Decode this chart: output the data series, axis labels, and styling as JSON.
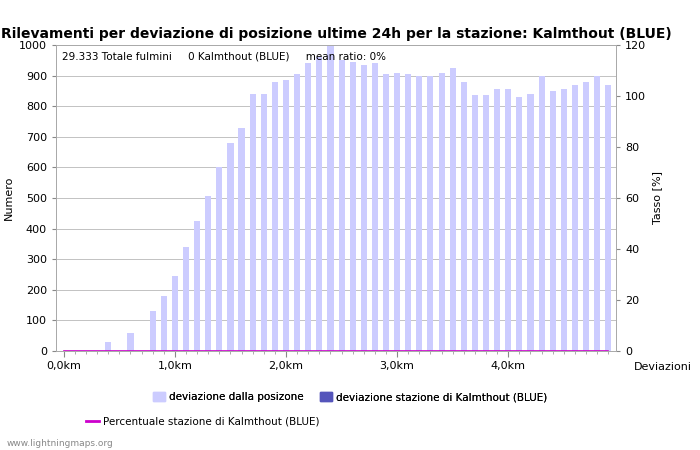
{
  "title": "Rilevamenti per deviazione di posizione ultime 24h per la stazione: Kalmthout (BLUE)",
  "ylabel_left": "Numero",
  "ylabel_right": "Tasso [%]",
  "annotation": "29.333 Totale fulmini     0 Kalmthout (BLUE)     mean ratio: 0%",
  "watermark": "www.lightningmaps.org",
  "xlabel_right": "Deviazioni",
  "ylim_left": [
    0,
    1000
  ],
  "ylim_right": [
    0,
    120
  ],
  "bar_color": "#ccccff",
  "bar_color_station": "#5555bb",
  "line_color": "#cc00cc",
  "x_tick_labels": [
    "0,0km",
    "1,0km",
    "2,0km",
    "3,0km",
    "4,0km"
  ],
  "x_tick_positions": [
    0,
    10,
    20,
    30,
    40
  ],
  "bar_values": [
    0,
    0,
    0,
    0,
    30,
    0,
    60,
    0,
    130,
    180,
    245,
    340,
    425,
    505,
    600,
    680,
    730,
    840,
    840,
    880,
    885,
    905,
    940,
    960,
    1000,
    950,
    945,
    935,
    940,
    905,
    910,
    905,
    900,
    900,
    910,
    925,
    880,
    835,
    835,
    855,
    855,
    830,
    840,
    900,
    850,
    855,
    870,
    880,
    900,
    870
  ],
  "station_bar_values": [
    0,
    0,
    0,
    0,
    0,
    0,
    0,
    0,
    0,
    0,
    0,
    0,
    0,
    0,
    0,
    0,
    0,
    0,
    0,
    0,
    0,
    0,
    0,
    0,
    0,
    0,
    0,
    0,
    0,
    0,
    0,
    0,
    0,
    0,
    0,
    0,
    0,
    0,
    0,
    0,
    0,
    0,
    0,
    0,
    0,
    0,
    0,
    0,
    0,
    0
  ],
  "line_values": [
    0,
    0,
    0,
    0,
    0,
    0,
    0,
    0,
    0,
    0,
    0,
    0,
    0,
    0,
    0,
    0,
    0,
    0,
    0,
    0,
    0,
    0,
    0,
    0,
    0,
    0,
    0,
    0,
    0,
    0,
    0,
    0,
    0,
    0,
    0,
    0,
    0,
    0,
    0,
    0,
    0,
    0,
    0,
    0,
    0,
    0,
    0,
    0,
    0,
    0
  ],
  "legend_items": [
    {
      "label": "deviazione dalla posizone",
      "color": "#ccccff",
      "type": "patch"
    },
    {
      "label": "deviazione stazione di Kalmthout (BLUE)",
      "color": "#5555bb",
      "type": "patch"
    },
    {
      "label": "Percentuale stazione di Kalmthout (BLUE)",
      "color": "#cc00cc",
      "type": "line"
    }
  ],
  "background_color": "#ffffff",
  "grid_color": "#aaaaaa",
  "title_fontsize": 10,
  "axis_fontsize": 8,
  "tick_fontsize": 8,
  "bar_width": 0.55
}
